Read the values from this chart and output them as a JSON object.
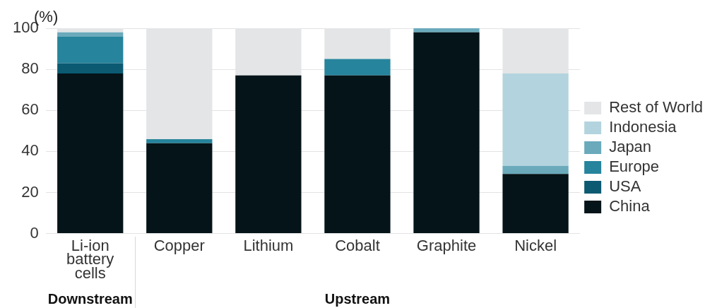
{
  "chart_data": {
    "type": "bar",
    "stacked": true,
    "ylabel": "(%)",
    "categories": [
      "Li-ion battery cells",
      "Copper",
      "Lithium",
      "Cobalt",
      "Graphite",
      "Nickel"
    ],
    "series": [
      {
        "name": "China",
        "color": "#041419",
        "values": [
          78,
          44,
          77,
          77,
          98,
          29
        ]
      },
      {
        "name": "USA",
        "color": "#0b5a72",
        "values": [
          5,
          0,
          0,
          0,
          0,
          0
        ]
      },
      {
        "name": "Europe",
        "color": "#26849c",
        "values": [
          13,
          2,
          0,
          8,
          0,
          0
        ]
      },
      {
        "name": "Japan",
        "color": "#6aaabb",
        "values": [
          2,
          0,
          0,
          0,
          2,
          4
        ]
      },
      {
        "name": "Indonesia",
        "color": "#b3d4de",
        "values": [
          0,
          0,
          0,
          0,
          0,
          45
        ]
      },
      {
        "name": "Rest of World",
        "color": "#e3e5e7",
        "values": [
          2,
          54,
          23,
          15,
          0,
          22
        ]
      }
    ],
    "ylim": [
      0,
      100
    ],
    "yticks": [
      0,
      20,
      40,
      60,
      80,
      100
    ],
    "grid": "y",
    "legend": "right",
    "annotations": [
      "Downstream",
      "Upstream"
    ]
  }
}
